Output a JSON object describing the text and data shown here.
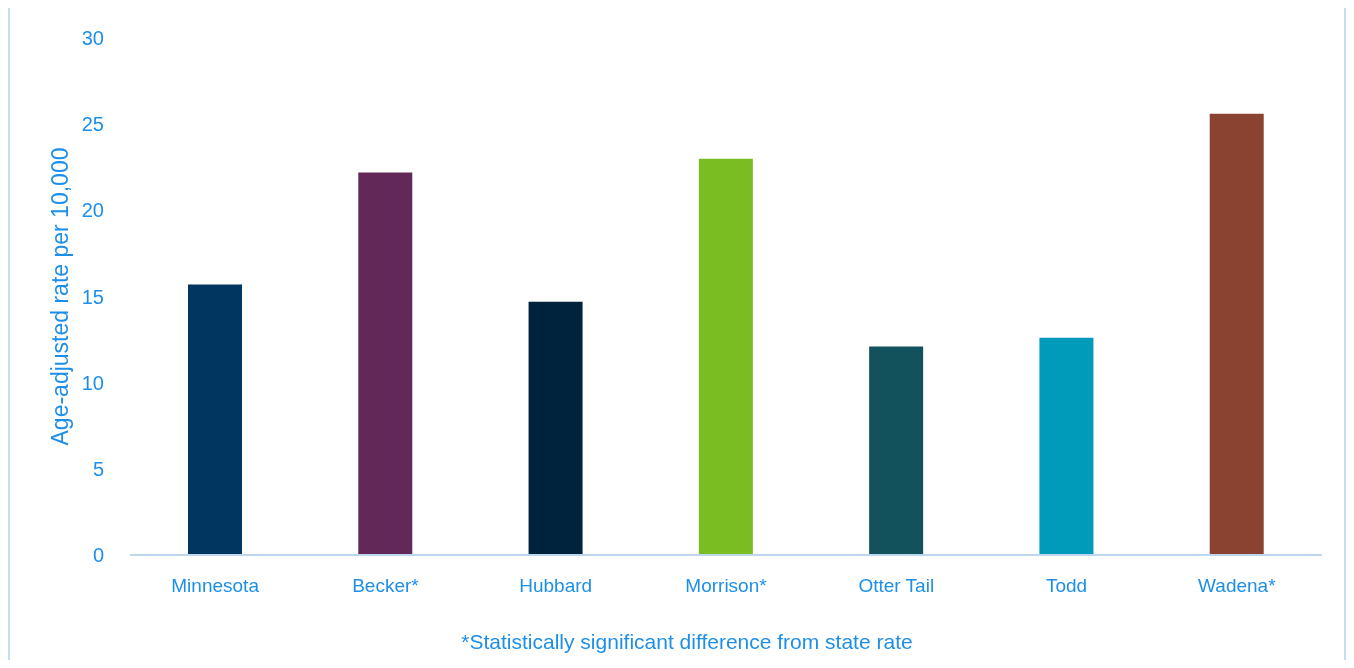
{
  "chart_data": {
    "type": "bar",
    "ylabel": "Age-adjusted rate per 10,000",
    "annotations": [
      "*Statistically significant difference from state rate"
    ],
    "categories": [
      "Minnesota",
      "Becker*",
      "Hubbard",
      "Morrison*",
      "Otter Tail",
      "Todd",
      "Wadena*"
    ],
    "values": [
      15.7,
      22.2,
      14.7,
      23.0,
      12.1,
      12.6,
      25.6
    ],
    "colors": [
      "#003660",
      "#612858",
      "#00233d",
      "#7abd22",
      "#12525c",
      "#009bbb",
      "#8a4231"
    ],
    "ylim": [
      0,
      30
    ],
    "yticks": [
      0,
      5,
      10,
      15,
      20,
      25,
      30
    ]
  }
}
